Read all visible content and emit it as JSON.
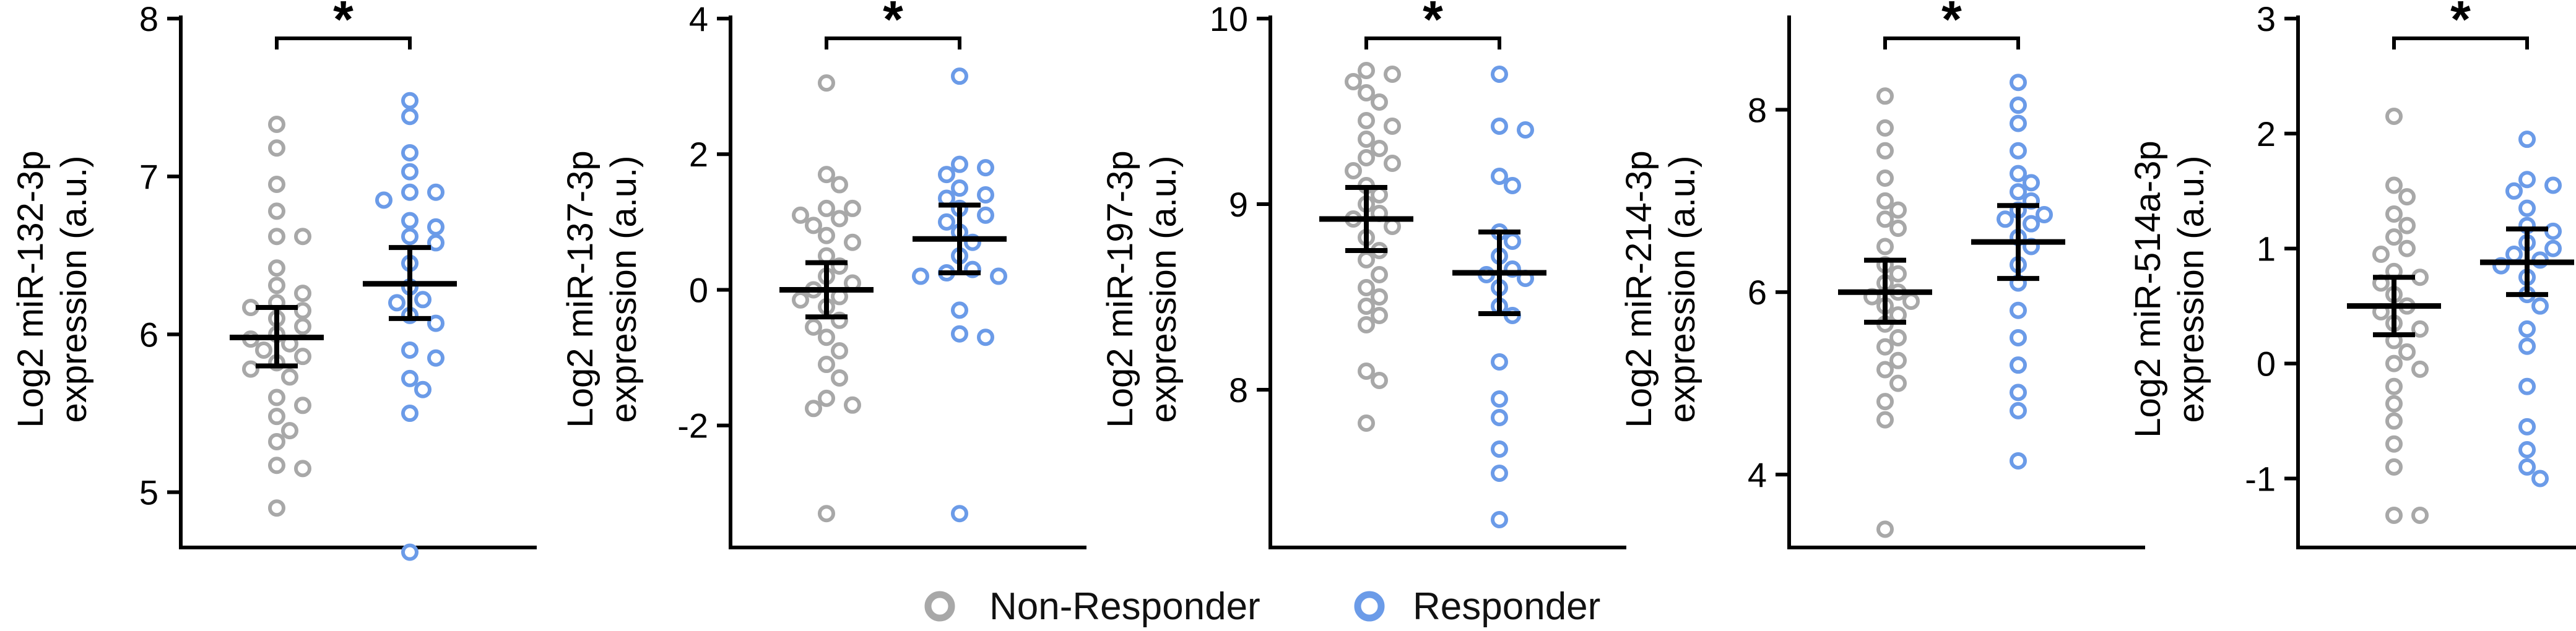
{
  "legend": {
    "items": [
      {
        "label": "Non-Responder",
        "color": "#a8a8a8"
      },
      {
        "label": "Responder",
        "color": "#6b9be8"
      }
    ]
  },
  "chart_data": [
    {
      "type": "scatter",
      "ylabel_line1": "Log2 miR-132-3p",
      "ylabel_line2": "expression (a.u.)",
      "ylim": [
        4.65,
        8.0
      ],
      "yticks": [
        5,
        6,
        7,
        8
      ],
      "significance": "*",
      "series": [
        {
          "color": "#a8a8a8",
          "mean": 5.98,
          "ci": [
            5.8,
            6.17
          ],
          "values": [
            7.33,
            7.18,
            6.95,
            6.78,
            6.62,
            6.62,
            6.42,
            6.31,
            6.26,
            6.2,
            6.17,
            6.15,
            6.1,
            6.05,
            6.0,
            5.97,
            5.94,
            5.9,
            5.86,
            5.82,
            5.78,
            5.73,
            5.6,
            5.55,
            5.48,
            5.39,
            5.32,
            5.17,
            5.15,
            4.9
          ]
        },
        {
          "color": "#6b9be8",
          "mean": 6.32,
          "ci": [
            6.1,
            6.55
          ],
          "values": [
            7.48,
            7.38,
            7.15,
            7.03,
            6.9,
            6.9,
            6.85,
            6.72,
            6.68,
            6.62,
            6.58,
            6.45,
            6.3,
            6.22,
            6.2,
            6.12,
            6.07,
            5.9,
            5.85,
            5.72,
            5.65,
            5.5,
            4.62
          ]
        }
      ]
    },
    {
      "type": "scatter",
      "ylabel_line1": "Log2 miR-137-3p",
      "ylabel_line2": "expression (a.u.)",
      "ylim": [
        -3.8,
        4.0
      ],
      "yticks": [
        -2,
        0,
        2,
        4
      ],
      "significance": "*",
      "series": [
        {
          "color": "#a8a8a8",
          "mean": 0.0,
          "ci": [
            -0.4,
            0.4
          ],
          "values": [
            3.05,
            1.7,
            1.55,
            1.2,
            1.2,
            1.1,
            1.05,
            0.95,
            0.8,
            0.7,
            0.5,
            0.35,
            0.2,
            0.1,
            0.0,
            -0.1,
            -0.15,
            -0.25,
            -0.45,
            -0.55,
            -0.7,
            -0.9,
            -1.1,
            -1.3,
            -1.6,
            -1.7,
            -1.75,
            -3.3
          ]
        },
        {
          "color": "#6b9be8",
          "mean": 0.75,
          "ci": [
            0.25,
            1.25
          ],
          "values": [
            3.15,
            1.85,
            1.8,
            1.7,
            1.5,
            1.4,
            1.35,
            1.2,
            1.1,
            1.0,
            0.85,
            0.7,
            0.5,
            0.3,
            0.25,
            0.2,
            0.2,
            -0.3,
            -0.65,
            -0.7,
            -3.3
          ]
        }
      ]
    },
    {
      "type": "scatter",
      "ylabel_line1": "Log2 miR-197-3p",
      "ylabel_line2": "expression (a.u.)",
      "ylim": [
        7.15,
        10.0
      ],
      "yticks": [
        8,
        9,
        10
      ],
      "significance": "*",
      "series": [
        {
          "color": "#a8a8a8",
          "mean": 8.92,
          "ci": [
            8.75,
            9.09
          ],
          "values": [
            9.72,
            9.7,
            9.66,
            9.6,
            9.55,
            9.45,
            9.42,
            9.35,
            9.3,
            9.25,
            9.22,
            9.18,
            9.1,
            9.05,
            9.0,
            8.95,
            8.92,
            8.88,
            8.82,
            8.75,
            8.7,
            8.62,
            8.55,
            8.5,
            8.45,
            8.4,
            8.35,
            8.1,
            8.05,
            7.82
          ]
        },
        {
          "color": "#6b9be8",
          "mean": 8.63,
          "ci": [
            8.41,
            8.85
          ],
          "values": [
            9.7,
            9.42,
            9.4,
            9.15,
            9.1,
            8.85,
            8.8,
            8.72,
            8.65,
            8.62,
            8.6,
            8.55,
            8.45,
            8.4,
            8.15,
            7.95,
            7.85,
            7.68,
            7.55,
            7.3
          ]
        }
      ]
    },
    {
      "type": "scatter",
      "ylabel_line1": "Log2 miR-214-3p",
      "ylabel_line2": "expression (a.u.)",
      "ylim": [
        3.2,
        9.0
      ],
      "yticks": [
        4,
        6,
        8
      ],
      "significance": "*",
      "series": [
        {
          "color": "#a8a8a8",
          "mean": 6.0,
          "ci": [
            5.67,
            6.35
          ],
          "values": [
            8.15,
            7.8,
            7.55,
            7.25,
            7.0,
            6.9,
            6.8,
            6.7,
            6.5,
            6.3,
            6.2,
            6.1,
            6.0,
            5.95,
            5.9,
            5.85,
            5.75,
            5.65,
            5.5,
            5.4,
            5.25,
            5.15,
            5.0,
            4.8,
            4.6,
            3.4
          ]
        },
        {
          "color": "#6b9be8",
          "mean": 6.55,
          "ci": [
            6.15,
            6.95
          ],
          "values": [
            8.3,
            8.05,
            7.85,
            7.55,
            7.3,
            7.2,
            7.1,
            7.0,
            6.9,
            6.85,
            6.8,
            6.75,
            6.6,
            6.5,
            6.3,
            6.1,
            5.8,
            5.5,
            5.2,
            4.9,
            4.7,
            4.15
          ]
        }
      ]
    },
    {
      "type": "scatter",
      "ylabel_line1": "Log2 miR-514a-3p",
      "ylabel_line2": "expression (a.u.)",
      "ylim": [
        -1.6,
        3.0
      ],
      "yticks": [
        -1,
        0,
        1,
        2,
        3
      ],
      "significance": "*",
      "series": [
        {
          "color": "#a8a8a8",
          "mean": 0.5,
          "ci": [
            0.25,
            0.75
          ],
          "values": [
            2.15,
            1.55,
            1.45,
            1.3,
            1.2,
            1.1,
            1.0,
            0.95,
            0.8,
            0.75,
            0.7,
            0.6,
            0.5,
            0.45,
            0.35,
            0.3,
            0.2,
            0.1,
            0.0,
            -0.05,
            -0.2,
            -0.35,
            -0.5,
            -0.7,
            -0.9,
            -1.32,
            -1.32
          ]
        },
        {
          "color": "#6b9be8",
          "mean": 0.88,
          "ci": [
            0.6,
            1.17
          ],
          "values": [
            1.95,
            1.6,
            1.55,
            1.5,
            1.35,
            1.2,
            1.15,
            1.05,
            1.0,
            0.95,
            0.9,
            0.85,
            0.75,
            0.6,
            0.5,
            0.3,
            0.15,
            -0.2,
            -0.55,
            -0.75,
            -0.9,
            -1.0
          ]
        }
      ]
    }
  ]
}
